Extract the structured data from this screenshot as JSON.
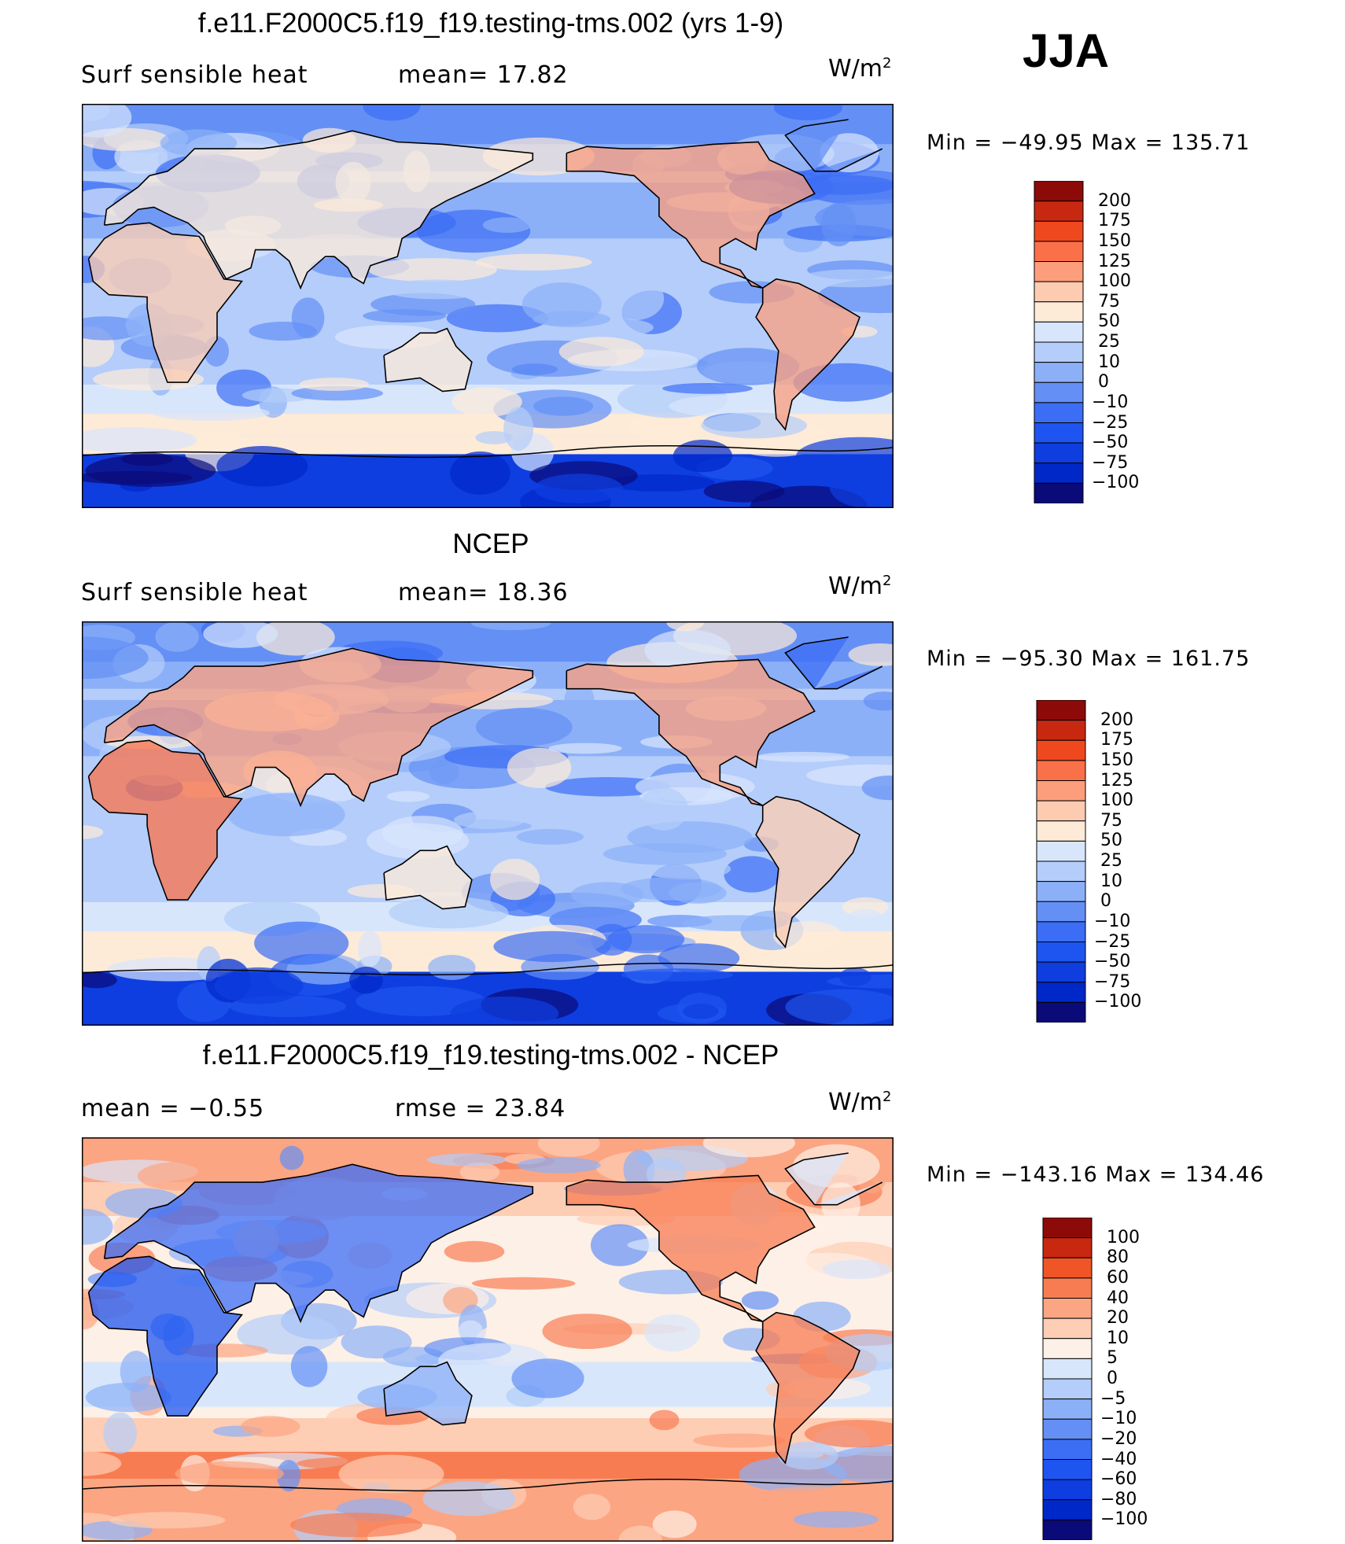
{
  "season": "JJA",
  "colors": {
    "sensible": [
      "#0a0a78",
      "#0028c8",
      "#0e3ee0",
      "#1e55f0",
      "#3c6ef5",
      "#6490f5",
      "#8cb0f8",
      "#b4cdfa",
      "#d8e6fc",
      "#fdebd8",
      "#fdccb0",
      "#fc9e7c",
      "#fa7048",
      "#f0481e",
      "#c82810",
      "#8c0a08"
    ],
    "diff": [
      "#0a0a78",
      "#0028c8",
      "#0e3ee0",
      "#1e55f0",
      "#3c6ef5",
      "#6490f5",
      "#8cb0f8",
      "#b4cdfa",
      "#d8e6fc",
      "#fdf0e6",
      "#fdcdb4",
      "#fca582",
      "#f87c52",
      "#f05528",
      "#c82810",
      "#8c0a08"
    ]
  },
  "panels": [
    {
      "title": "f.e11.F2000C5.f19_f19.testing-tms.002 (yrs 1-9)",
      "left_label": "Surf  sensible  heat",
      "mid_label": "mean=   17.82",
      "units": "W/m",
      "units_sup": "2",
      "minmax": "Min  =  −49.95  Max  =  135.71"
    },
    {
      "title": "NCEP",
      "left_label": "Surf  sensible  heat",
      "mid_label": "mean=   18.36",
      "units": "W/m",
      "units_sup": "2",
      "minmax": "Min  =  −95.30  Max  =  161.75"
    },
    {
      "title": "f.e11.F2000C5.f19_f19.testing-tms.002 - NCEP",
      "left_label": "mean  =    −0.55",
      "mid_label": "rmse  =    23.84",
      "units": "W/m",
      "units_sup": "2",
      "minmax": "Min  =  −143.16  Max  =  134.46"
    }
  ],
  "chart_data": [
    {
      "type": "heatmap",
      "title": "f.e11.F2000C5.f19_f19.testing-tms.002 (yrs 1-9)",
      "variable": "Surf sensible heat",
      "units": "W/m2",
      "mean": 17.82,
      "min": -49.95,
      "max": 135.71,
      "colorbar_levels": [
        200,
        175,
        150,
        125,
        100,
        75,
        50,
        25,
        10,
        0,
        -10,
        -25,
        -50,
        -75,
        -100
      ]
    },
    {
      "type": "heatmap",
      "title": "NCEP",
      "variable": "Surf sensible heat",
      "units": "W/m2",
      "mean": 18.36,
      "min": -95.3,
      "max": 161.75,
      "colorbar_levels": [
        200,
        175,
        150,
        125,
        100,
        75,
        50,
        25,
        10,
        0,
        -10,
        -25,
        -50,
        -75,
        -100
      ]
    },
    {
      "type": "heatmap",
      "title": "f.e11.F2000C5.f19_f19.testing-tms.002 - NCEP",
      "units": "W/m2",
      "mean": -0.55,
      "rmse": 23.84,
      "min": -143.16,
      "max": 134.46,
      "colorbar_levels": [
        100,
        80,
        60,
        40,
        20,
        10,
        5,
        0,
        -5,
        -10,
        -20,
        -40,
        -60,
        -80,
        -100
      ]
    }
  ]
}
